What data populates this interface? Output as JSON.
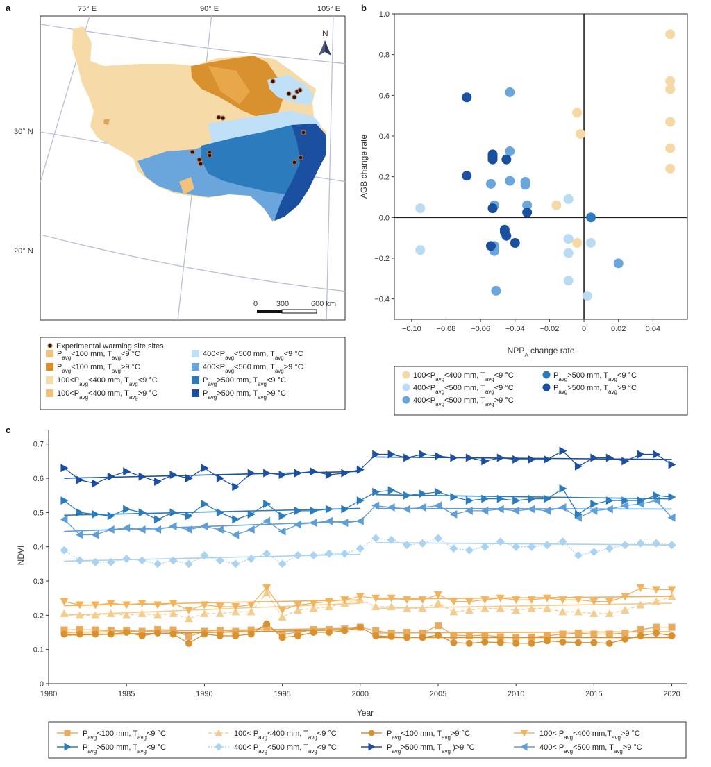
{
  "panels": {
    "a": {
      "letter": "a",
      "longitudes": [
        "75° E",
        "90° E",
        "105° E"
      ],
      "latitudes": [
        "30° N",
        "20° N"
      ],
      "north": "N",
      "scale": [
        "0",
        "300",
        "600 km"
      ],
      "legend_sites": "Experimental warming site sites",
      "legend": [
        {
          "text": "P_avg<100 mm, T_avg<9 °C",
          "color": "#f0c47e"
        },
        {
          "text": "P_avg<100 mm, T_avg>9 °C",
          "color": "#d9912f"
        },
        {
          "text": "100<P_avg<400 mm, T_avg<9 °C",
          "color": "#f6dba8"
        },
        {
          "text": "100<P_avg<400 mm, T_avg>9 °C",
          "color": "#f1c27a"
        },
        {
          "text": "400<P_avg<500 mm, T_avg<9 °C",
          "color": "#bfe0f6"
        },
        {
          "text": "400<P_avg<500 mm, T_avg>9 °C",
          "color": "#6aa6db"
        },
        {
          "text": "P_avg>500 mm, T_avg<9 °C",
          "color": "#2b7bbd"
        },
        {
          "text": "P_avg>500 mm, T_avg>9 °C",
          "color": "#1b4fa0"
        }
      ]
    },
    "b": {
      "letter": "b",
      "legend": [
        {
          "text": "100<P_avg<400 mm, T_avg<9 °C",
          "color": "#f6d8a4"
        },
        {
          "text": "P_avg>500 mm, T_avg<9 °C",
          "color": "#2b7bbd"
        },
        {
          "text": "400<P_avg<500 mm, T_avg<9 °C",
          "color": "#b9dcf4"
        },
        {
          "text": "P_avg>500 mm, T_avg>9 °C",
          "color": "#1b4fa0"
        },
        {
          "text": "400<P_avg<500 mm, T_avg>9 °C",
          "color": "#6aa6db"
        }
      ]
    },
    "c": {
      "letter": "c",
      "legend": [
        {
          "text": "P_avg<100 mm, T_avg<9 °C"
        },
        {
          "text": "100< P_avg<400 mm, T_avg<9 °C"
        },
        {
          "text": "P_avg<100 mm, T_avg>9 °C"
        },
        {
          "text": "100< P_avg<400 mm,T_avg>9 °C"
        },
        {
          "text": "P_avg>500 mm, T_avg<9 °C"
        },
        {
          "text": "400< P_avg<500 mm, T_avg<9 °C"
        },
        {
          "text": "P_avg>500 mm, T_avg )>9 °C"
        },
        {
          "text": "400< P_avg<500 mm, T_avg>9 °C"
        }
      ]
    }
  },
  "chart_data": [
    {
      "type": "scatter",
      "panel": "b",
      "xlabel": "NPP_A change rate",
      "ylabel": "AGB change rate",
      "xlim": [
        -0.11,
        0.06
      ],
      "ylim": [
        -0.5,
        1.0
      ],
      "xticks": [
        -0.1,
        -0.08,
        -0.06,
        -0.04,
        -0.02,
        0,
        0.02,
        0.04
      ],
      "xtick_labels": [
        "−0.10",
        "−0.08",
        "−0.06",
        "−0.04",
        "−0.02",
        "0",
        "0.02",
        "0.04"
      ],
      "yticks": [
        -0.4,
        -0.2,
        0,
        0.2,
        0.4,
        0.6,
        0.8,
        1.0
      ],
      "ytick_labels": [
        "−0.4",
        "−0.2",
        "0.0",
        "0.2",
        "0.4",
        "0.6",
        "0.8",
        "1.0"
      ],
      "series": [
        {
          "name": "100<P_avg<400 mm, T_avg<9 °C",
          "color": "#f6d8a4",
          "points": [
            [
              0.05,
              0.9
            ],
            [
              0.05,
              0.67
            ],
            [
              0.05,
              0.63
            ],
            [
              0.05,
              0.47
            ],
            [
              0.05,
              0.34
            ],
            [
              0.05,
              0.24
            ],
            [
              -0.004,
              0.515
            ],
            [
              -0.002,
              0.41
            ],
            [
              -0.016,
              0.06
            ],
            [
              -0.004,
              -0.125
            ]
          ]
        },
        {
          "name": "400<P_avg<500 mm, T_avg<9 °C",
          "color": "#b9dcf4",
          "points": [
            [
              -0.095,
              0.045
            ],
            [
              -0.095,
              -0.16
            ],
            [
              -0.009,
              0.09
            ],
            [
              -0.009,
              -0.105
            ],
            [
              -0.009,
              -0.175
            ],
            [
              -0.009,
              -0.31
            ],
            [
              0.004,
              -0.125
            ],
            [
              0.002,
              -0.385
            ]
          ]
        },
        {
          "name": "400<P_avg<500 mm, T_avg>9 °C",
          "color": "#6aa6db",
          "points": [
            [
              -0.043,
              0.615
            ],
            [
              -0.043,
              0.325
            ],
            [
              -0.054,
              0.165
            ],
            [
              -0.052,
              0.06
            ],
            [
              -0.043,
              0.18
            ],
            [
              -0.034,
              0.175
            ],
            [
              -0.034,
              0.16
            ],
            [
              -0.033,
              0.06
            ],
            [
              -0.052,
              -0.14
            ],
            [
              -0.052,
              -0.165
            ],
            [
              -0.051,
              -0.36
            ],
            [
              0.02,
              -0.225
            ]
          ]
        },
        {
          "name": "P_avg>500 mm, T_avg<9 °C",
          "color": "#2b7bbd",
          "points": [
            [
              0.004,
              0.0
            ]
          ]
        },
        {
          "name": "P_avg>500 mm, T_avg>9 °C",
          "color": "#1b4fa0",
          "points": [
            [
              -0.068,
              0.59
            ],
            [
              -0.068,
              0.205
            ],
            [
              -0.053,
              0.31
            ],
            [
              -0.053,
              0.3
            ],
            [
              -0.053,
              0.29
            ],
            [
              -0.053,
              0.285
            ],
            [
              -0.045,
              0.285
            ],
            [
              -0.053,
              0.045
            ],
            [
              -0.033,
              0.025
            ],
            [
              -0.046,
              -0.06
            ],
            [
              -0.046,
              -0.07
            ],
            [
              -0.045,
              -0.09
            ],
            [
              -0.054,
              -0.14
            ],
            [
              -0.04,
              -0.125
            ]
          ]
        }
      ]
    },
    {
      "type": "line",
      "panel": "c",
      "xlabel": "Year",
      "ylabel": "NDVI",
      "xlim": [
        1980,
        2021
      ],
      "ylim": [
        0,
        0.74
      ],
      "xticks": [
        1980,
        1985,
        1990,
        1995,
        2000,
        2005,
        2010,
        2015,
        2020
      ],
      "yticks": [
        0,
        0.1,
        0.2,
        0.3,
        0.4,
        0.5,
        0.6,
        0.7
      ],
      "x_start": 1981,
      "x_end": 2020,
      "series": [
        {
          "name": "P_avg<100 mm, T_avg<9 °C",
          "color": "#e8ab5e",
          "marker": "square",
          "dash": "none",
          "values": [
            0.157,
            0.158,
            0.157,
            0.155,
            0.156,
            0.153,
            0.158,
            0.157,
            0.138,
            0.153,
            0.156,
            0.153,
            0.157,
            0.165,
            0.145,
            0.15,
            0.158,
            0.158,
            0.16,
            0.165,
            0.155,
            0.148,
            0.15,
            0.148,
            0.17,
            0.142,
            0.14,
            0.142,
            0.137,
            0.135,
            0.136,
            0.14,
            0.145,
            0.148,
            0.145,
            0.145,
            0.148,
            0.158,
            0.165,
            0.165
          ],
          "trend": [
            [
              1981,
              0.15,
              2000,
              0.162
            ],
            [
              2001,
              0.148,
              2020,
              0.152
            ]
          ]
        },
        {
          "name": "P_avg<100 mm, T_avg>9 °C",
          "color": "#d9912f",
          "marker": "circle",
          "dash": "none",
          "values": [
            0.145,
            0.145,
            0.145,
            0.145,
            0.15,
            0.14,
            0.148,
            0.145,
            0.118,
            0.145,
            0.14,
            0.14,
            0.145,
            0.175,
            0.135,
            0.14,
            0.15,
            0.15,
            0.155,
            0.165,
            0.14,
            0.138,
            0.135,
            0.135,
            0.142,
            0.12,
            0.118,
            0.122,
            0.12,
            0.118,
            0.118,
            0.125,
            0.122,
            0.12,
            0.12,
            0.118,
            0.13,
            0.14,
            0.148,
            0.14
          ],
          "trend": [
            [
              1981,
              0.142,
              2000,
              0.158
            ],
            [
              2001,
              0.135,
              2020,
              0.135
            ]
          ]
        },
        {
          "name": "100< P_avg<400 mm, T_avg<9 °C",
          "color": "#f3cc8e",
          "marker": "triangle-up",
          "dash": "dash",
          "values": [
            0.205,
            0.2,
            0.2,
            0.205,
            0.2,
            0.205,
            0.2,
            0.205,
            0.19,
            0.205,
            0.205,
            0.21,
            0.21,
            0.265,
            0.195,
            0.215,
            0.22,
            0.225,
            0.235,
            0.245,
            0.225,
            0.225,
            0.22,
            0.22,
            0.235,
            0.21,
            0.215,
            0.22,
            0.22,
            0.215,
            0.22,
            0.22,
            0.21,
            0.21,
            0.205,
            0.205,
            0.215,
            0.23,
            0.24,
            0.255
          ],
          "trend": [
            [
              1981,
              0.2,
              2000,
              0.235
            ],
            [
              2001,
              0.22,
              2020,
              0.235
            ]
          ]
        },
        {
          "name": "100< P_avg<400 mm,T_avg>9 °C",
          "color": "#f2b35f",
          "marker": "triangle-down",
          "dash": "none",
          "values": [
            0.24,
            0.23,
            0.23,
            0.235,
            0.23,
            0.235,
            0.23,
            0.235,
            0.215,
            0.23,
            0.225,
            0.225,
            0.23,
            0.28,
            0.215,
            0.23,
            0.235,
            0.24,
            0.245,
            0.255,
            0.25,
            0.25,
            0.245,
            0.245,
            0.26,
            0.24,
            0.24,
            0.245,
            0.25,
            0.245,
            0.245,
            0.25,
            0.245,
            0.245,
            0.24,
            0.24,
            0.255,
            0.28,
            0.275,
            0.275
          ],
          "trend": [
            [
              1981,
              0.228,
              2000,
              0.245
            ],
            [
              2001,
              0.247,
              2020,
              0.255
            ]
          ]
        },
        {
          "name": "400< P_avg<500 mm, T_avg<9 °C",
          "color": "#a9d3f0",
          "marker": "diamond",
          "dash": "dot",
          "values": [
            0.39,
            0.36,
            0.355,
            0.355,
            0.365,
            0.36,
            0.35,
            0.36,
            0.35,
            0.375,
            0.36,
            0.35,
            0.365,
            0.38,
            0.35,
            0.375,
            0.375,
            0.38,
            0.38,
            0.395,
            0.425,
            0.42,
            0.405,
            0.41,
            0.425,
            0.395,
            0.39,
            0.4,
            0.415,
            0.4,
            0.4,
            0.405,
            0.415,
            0.375,
            0.385,
            0.395,
            0.405,
            0.41,
            0.41,
            0.405
          ],
          "trend": [
            [
              1981,
              0.358,
              2000,
              0.378
            ],
            [
              2001,
              0.412,
              2020,
              0.405
            ]
          ]
        },
        {
          "name": "400< P_avg<500 mm, T_avg>9 °C",
          "color": "#5e9dd6",
          "marker": "triangle-left",
          "dash": "none",
          "values": [
            0.48,
            0.435,
            0.435,
            0.45,
            0.455,
            0.45,
            0.45,
            0.46,
            0.45,
            0.46,
            0.45,
            0.435,
            0.45,
            0.475,
            0.445,
            0.465,
            0.47,
            0.475,
            0.47,
            0.475,
            0.52,
            0.515,
            0.51,
            0.515,
            0.52,
            0.495,
            0.505,
            0.505,
            0.51,
            0.505,
            0.51,
            0.505,
            0.515,
            0.485,
            0.505,
            0.51,
            0.52,
            0.525,
            0.535,
            0.485
          ],
          "trend": [
            [
              1981,
              0.445,
              2000,
              0.475
            ],
            [
              2001,
              0.512,
              2020,
              0.51
            ]
          ]
        },
        {
          "name": "P_avg>500 mm, T_avg<9 °C",
          "color": "#2b7bbd",
          "marker": "triangle-right",
          "dash": "none",
          "values": [
            0.535,
            0.5,
            0.495,
            0.49,
            0.51,
            0.5,
            0.48,
            0.5,
            0.49,
            0.525,
            0.5,
            0.48,
            0.495,
            0.525,
            0.49,
            0.505,
            0.505,
            0.51,
            0.51,
            0.535,
            0.56,
            0.565,
            0.55,
            0.555,
            0.56,
            0.545,
            0.535,
            0.54,
            0.54,
            0.535,
            0.54,
            0.54,
            0.57,
            0.495,
            0.525,
            0.535,
            0.535,
            0.535,
            0.55,
            0.545
          ],
          "trend": [
            [
              1981,
              0.492,
              2000,
              0.512
            ],
            [
              2001,
              0.552,
              2020,
              0.54
            ]
          ]
        },
        {
          "name": "P_avg>500 mm, T_avg )>9 °C",
          "color": "#1b4fa0",
          "marker": "triangle-right",
          "dash": "none",
          "values": [
            0.63,
            0.595,
            0.585,
            0.605,
            0.62,
            0.605,
            0.59,
            0.61,
            0.6,
            0.63,
            0.6,
            0.575,
            0.615,
            0.615,
            0.61,
            0.615,
            0.62,
            0.61,
            0.615,
            0.625,
            0.67,
            0.67,
            0.66,
            0.67,
            0.665,
            0.66,
            0.66,
            0.65,
            0.66,
            0.655,
            0.655,
            0.655,
            0.68,
            0.635,
            0.66,
            0.66,
            0.65,
            0.67,
            0.67,
            0.64
          ],
          "trend": [
            [
              1981,
              0.6,
              2000,
              0.62
            ],
            [
              2001,
              0.662,
              2020,
              0.655
            ]
          ]
        }
      ]
    }
  ]
}
